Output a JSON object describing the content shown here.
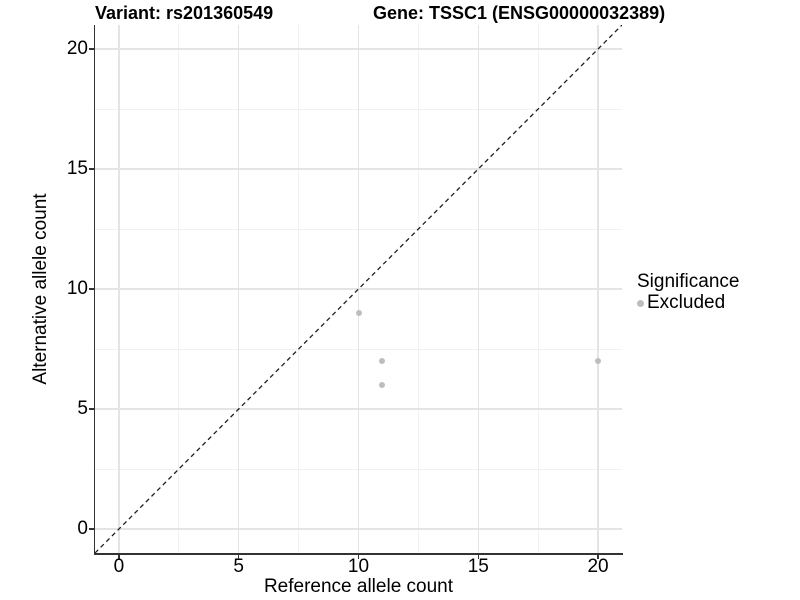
{
  "header": {
    "variant_title": "Variant: rs201360549",
    "gene_title": "Gene: TSSC1 (ENSG00000032389)"
  },
  "legend": {
    "title": "Significance",
    "items": [
      {
        "label": "Excluded",
        "color": "#bdbdbd"
      }
    ]
  },
  "chart_data": {
    "type": "scatter",
    "title": "Variant: rs201360549 — Gene: TSSC1 (ENSG00000032389)",
    "xlabel": "Reference allele count",
    "ylabel": "Alternative allele count",
    "xlim": [
      -1,
      21
    ],
    "ylim": [
      -1,
      21
    ],
    "x_ticks": [
      0,
      5,
      10,
      15,
      20
    ],
    "y_ticks": [
      0,
      5,
      10,
      15,
      20
    ],
    "grid": "major and minor",
    "legend_position": "right-center",
    "series": [
      {
        "name": "Excluded",
        "color": "#bdbdbd",
        "points": [
          {
            "x": 10,
            "y": 9
          },
          {
            "x": 11,
            "y": 7
          },
          {
            "x": 11,
            "y": 6
          },
          {
            "x": 20,
            "y": 7
          }
        ]
      }
    ],
    "reference_line": {
      "type": "identity y=x",
      "style": "dashed",
      "color": "#1f1f1f"
    }
  },
  "colors": {
    "background": "#ffffff",
    "axis": "#333333",
    "grid_major": "#e4e4e4",
    "grid_minor": "#f1f1f1",
    "point": "#bdbdbd",
    "text": "#000000"
  }
}
